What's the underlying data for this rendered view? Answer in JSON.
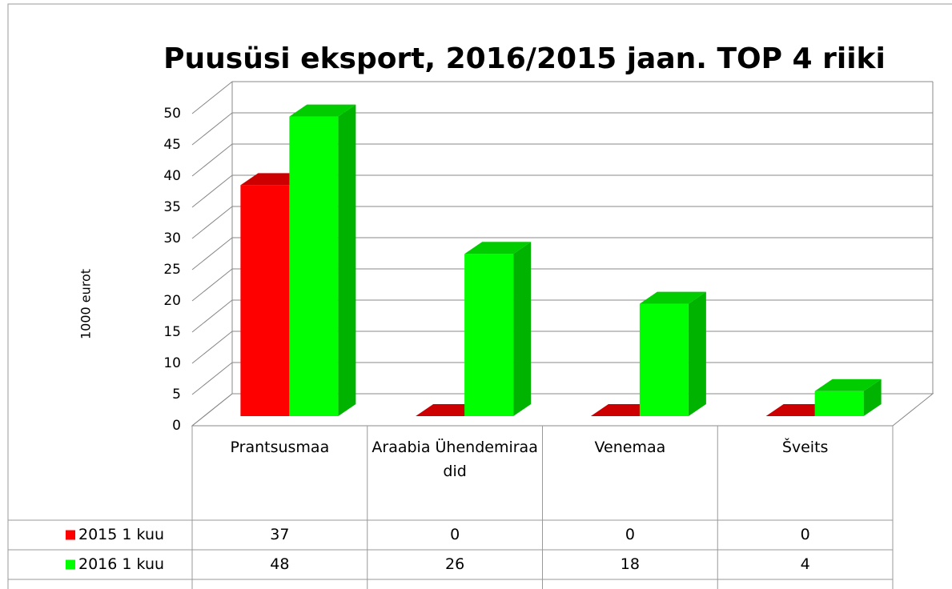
{
  "chart_data": {
    "type": "bar3d",
    "title": "Puusüsi eksport, 2016/2015 jaan. TOP 4 riiki",
    "y_label": "1000 eurot",
    "categories": [
      "Prantsusmaa",
      "Araabia Ühendemiraadid",
      "Venemaa",
      "Šveits"
    ],
    "series": [
      {
        "name": "2015 1 kuu",
        "color": "#ff0000",
        "values": [
          37,
          0,
          0,
          0
        ]
      },
      {
        "name": "2016 1 kuu",
        "color": "#00ff00",
        "values": [
          48,
          26,
          18,
          4
        ]
      }
    ],
    "ylim": [
      0,
      50
    ],
    "yticks": [
      0,
      5,
      10,
      15,
      20,
      25,
      30,
      35,
      40,
      45,
      50
    ],
    "grid": true,
    "data_table": true
  }
}
